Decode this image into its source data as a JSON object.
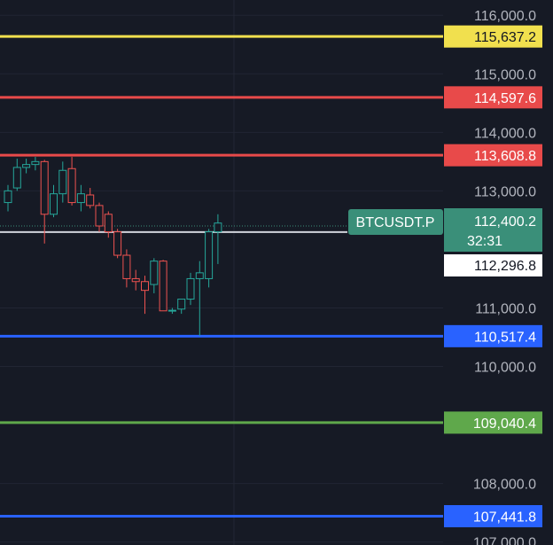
{
  "chart_data": {
    "type": "candlestick",
    "symbol": "BTCUSDT.P",
    "y_axis": {
      "range": [
        106980,
        116200
      ],
      "ticks": [
        "107,000.0",
        "108,000.0",
        "110,000.0",
        "111,000.0",
        "113,000.0",
        "114,000.0",
        "115,000.0",
        "116,000.0"
      ],
      "tick_values": [
        107000,
        108000,
        110000,
        111000,
        113000,
        114000,
        115000,
        116000
      ]
    },
    "grid": true,
    "levels": [
      {
        "value": 115637.2,
        "label": "115,637.2",
        "color": "#f1e04e",
        "text_color": "#131722"
      },
      {
        "value": 114597.6,
        "label": "114,597.6",
        "color": "#e84a4a",
        "text_color": "#ffffff"
      },
      {
        "value": 113608.8,
        "label": "113,608.8",
        "color": "#e84a4a",
        "text_color": "#ffffff"
      },
      {
        "value": 110517.4,
        "label": "110,517.4",
        "color": "#2962ff",
        "text_color": "#ffffff"
      },
      {
        "value": 109040.4,
        "label": "109,040.4",
        "color": "#5fa84b",
        "text_color": "#ffffff"
      },
      {
        "value": 107441.8,
        "label": "107,441.8",
        "color": "#2962ff",
        "text_color": "#ffffff"
      }
    ],
    "current_price": {
      "value": 112400.2,
      "label": "112,400.2",
      "countdown": "32:31",
      "color": "#3a8f79"
    },
    "reference_price": {
      "value": 112296.8,
      "label": "112,296.8"
    },
    "candles": [
      {
        "o": 112800,
        "h": 113100,
        "l": 112650,
        "c": 113000
      },
      {
        "o": 113050,
        "h": 113550,
        "l": 113000,
        "c": 113400
      },
      {
        "o": 113400,
        "h": 113550,
        "l": 113300,
        "c": 113450
      },
      {
        "o": 113450,
        "h": 113580,
        "l": 113350,
        "c": 113500
      },
      {
        "o": 113500,
        "h": 113530,
        "l": 112100,
        "c": 112600
      },
      {
        "o": 112600,
        "h": 113100,
        "l": 112550,
        "c": 112950
      },
      {
        "o": 112950,
        "h": 113500,
        "l": 112800,
        "c": 113350
      },
      {
        "o": 113380,
        "h": 113580,
        "l": 112750,
        "c": 112800
      },
      {
        "o": 112800,
        "h": 113100,
        "l": 112650,
        "c": 112950
      },
      {
        "o": 112930,
        "h": 113050,
        "l": 112700,
        "c": 112750
      },
      {
        "o": 112750,
        "h": 112800,
        "l": 112300,
        "c": 112400
      },
      {
        "o": 112600,
        "h": 112650,
        "l": 112200,
        "c": 112300
      },
      {
        "o": 112300,
        "h": 112350,
        "l": 111850,
        "c": 111900
      },
      {
        "o": 111900,
        "h": 112000,
        "l": 111350,
        "c": 111500
      },
      {
        "o": 111500,
        "h": 111650,
        "l": 111300,
        "c": 111450
      },
      {
        "o": 111450,
        "h": 111550,
        "l": 110900,
        "c": 111300
      },
      {
        "o": 111400,
        "h": 111850,
        "l": 111250,
        "c": 111800
      },
      {
        "o": 111800,
        "h": 111820,
        "l": 110950,
        "c": 110950
      },
      {
        "o": 110950,
        "h": 111000,
        "l": 110900,
        "c": 110960
      },
      {
        "o": 110980,
        "h": 111150,
        "l": 110900,
        "c": 111150
      },
      {
        "o": 111150,
        "h": 111600,
        "l": 111050,
        "c": 111500
      },
      {
        "o": 111500,
        "h": 111800,
        "l": 110520,
        "c": 111600
      },
      {
        "o": 111500,
        "h": 112350,
        "l": 111350,
        "c": 112300
      },
      {
        "o": 112300,
        "h": 112600,
        "l": 111750,
        "c": 112450
      }
    ]
  }
}
